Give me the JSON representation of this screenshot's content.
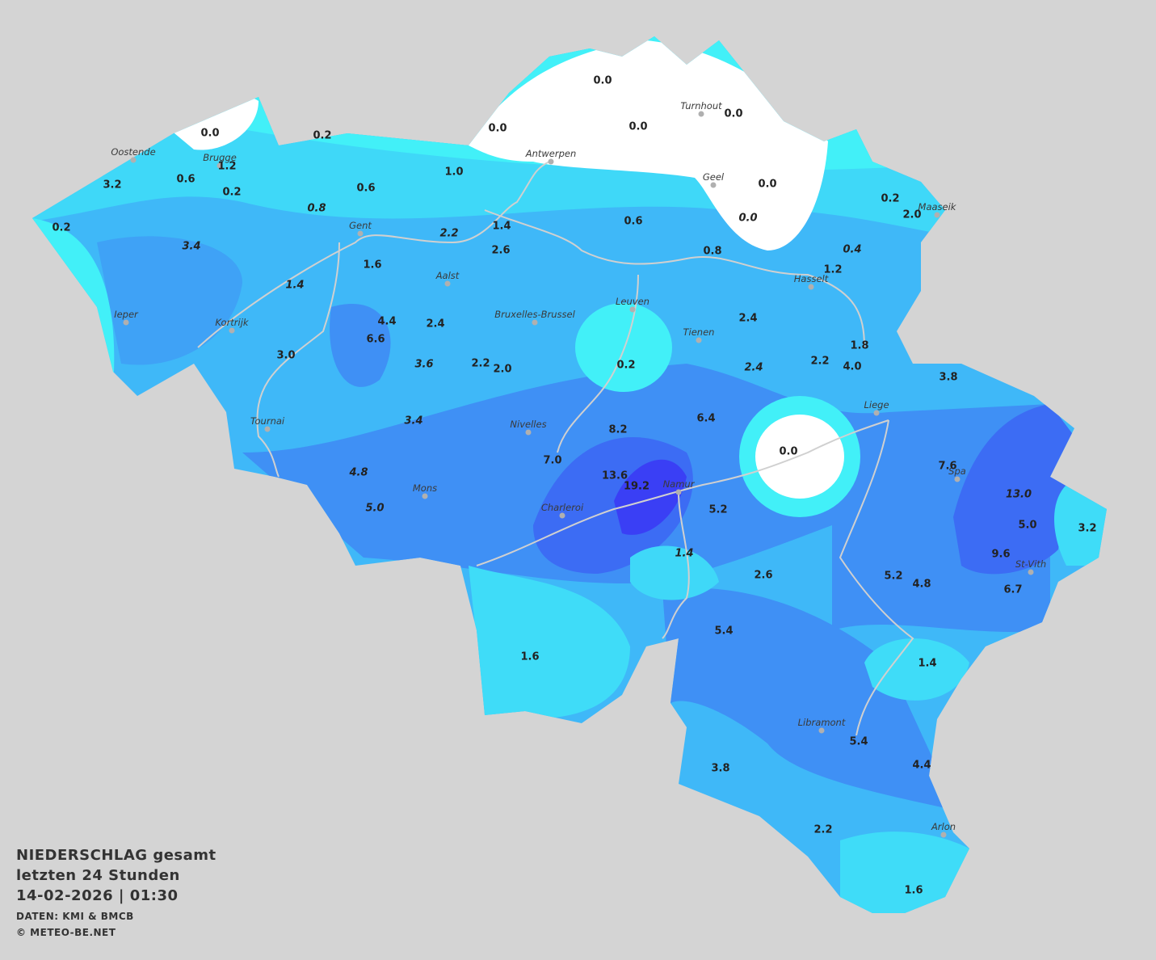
{
  "title": [
    "NIEDERSCHLAG gesamt",
    "letzten 24 Stunden",
    "14-02-2026  |  01:30"
  ],
  "credits": [
    "DATEN: KMI & BMCB",
    "© METEO-BE.NET"
  ],
  "cities": [
    "Oostende",
    "Brugge",
    "Antwerpen",
    "Turnhout",
    "Geel",
    "Maaseik",
    "Gent",
    "Aalst",
    "Hasselt",
    "Ieper",
    "Kortrijk",
    "Bruxelles-Brussel",
    "Leuven",
    "Tienen",
    "Liege",
    "Tournai",
    "Nivelles",
    "Spa",
    "Mons",
    "Namur",
    "Charleroi",
    "St-Vith",
    "Libramont",
    "Arlon"
  ],
  "stations": [
    {
      "value": "0.0",
      "italic": false
    },
    {
      "value": "0.0",
      "italic": false
    },
    {
      "value": "0.2",
      "italic": false
    },
    {
      "value": "0.0",
      "italic": false
    },
    {
      "value": "0.0",
      "italic": false
    },
    {
      "value": "0.0",
      "italic": false
    },
    {
      "value": "1.2",
      "italic": false
    },
    {
      "value": "0.6",
      "italic": false
    },
    {
      "value": "3.2",
      "italic": false
    },
    {
      "value": "1.0",
      "italic": false
    },
    {
      "value": "0.2",
      "italic": false
    },
    {
      "value": "0.6",
      "italic": false
    },
    {
      "value": "0.0",
      "italic": false
    },
    {
      "value": "0.2",
      "italic": false
    },
    {
      "value": "2.0",
      "italic": false
    },
    {
      "value": "0.8",
      "italic": true
    },
    {
      "value": "0.0",
      "italic": true
    },
    {
      "value": "0.6",
      "italic": false
    },
    {
      "value": "0.2",
      "italic": false
    },
    {
      "value": "1.4",
      "italic": false
    },
    {
      "value": "2.2",
      "italic": true
    },
    {
      "value": "2.6",
      "italic": false
    },
    {
      "value": "3.4",
      "italic": true
    },
    {
      "value": "0.8",
      "italic": false
    },
    {
      "value": "0.4",
      "italic": true
    },
    {
      "value": "1.6",
      "italic": false
    },
    {
      "value": "1.2",
      "italic": false
    },
    {
      "value": "1.4",
      "italic": true
    },
    {
      "value": "4.4",
      "italic": false
    },
    {
      "value": "2.4",
      "italic": false
    },
    {
      "value": "2.4",
      "italic": false
    },
    {
      "value": "6.6",
      "italic": false
    },
    {
      "value": "3.0",
      "italic": false
    },
    {
      "value": "1.8",
      "italic": false
    },
    {
      "value": "3.6",
      "italic": true
    },
    {
      "value": "2.2",
      "italic": false
    },
    {
      "value": "2.0",
      "italic": false
    },
    {
      "value": "0.2",
      "italic": false
    },
    {
      "value": "2.2",
      "italic": false
    },
    {
      "value": "4.0",
      "italic": false
    },
    {
      "value": "2.4",
      "italic": true
    },
    {
      "value": "3.8",
      "italic": false
    },
    {
      "value": "3.4",
      "italic": true
    },
    {
      "value": "6.4",
      "italic": false
    },
    {
      "value": "8.2",
      "italic": false
    },
    {
      "value": "0.0",
      "italic": false
    },
    {
      "value": "7.0",
      "italic": false
    },
    {
      "value": "7.6",
      "italic": false
    },
    {
      "value": "4.8",
      "italic": true
    },
    {
      "value": "13.6",
      "italic": false
    },
    {
      "value": "19.2",
      "italic": false
    },
    {
      "value": "13.0",
      "italic": true
    },
    {
      "value": "5.0",
      "italic": true
    },
    {
      "value": "5.2",
      "italic": false
    },
    {
      "value": "5.0",
      "italic": false
    },
    {
      "value": "3.2",
      "italic": false
    },
    {
      "value": "1.4",
      "italic": true
    },
    {
      "value": "9.6",
      "italic": false
    },
    {
      "value": "2.6",
      "italic": false
    },
    {
      "value": "5.2",
      "italic": false
    },
    {
      "value": "4.8",
      "italic": false
    },
    {
      "value": "6.7",
      "italic": false
    },
    {
      "value": "5.4",
      "italic": false
    },
    {
      "value": "1.6",
      "italic": false
    },
    {
      "value": "1.4",
      "italic": false
    },
    {
      "value": "5.4",
      "italic": false
    },
    {
      "value": "4.4",
      "italic": false
    },
    {
      "value": "3.8",
      "italic": false
    },
    {
      "value": "2.2",
      "italic": false
    },
    {
      "value": "1.6",
      "italic": false
    }
  ]
}
